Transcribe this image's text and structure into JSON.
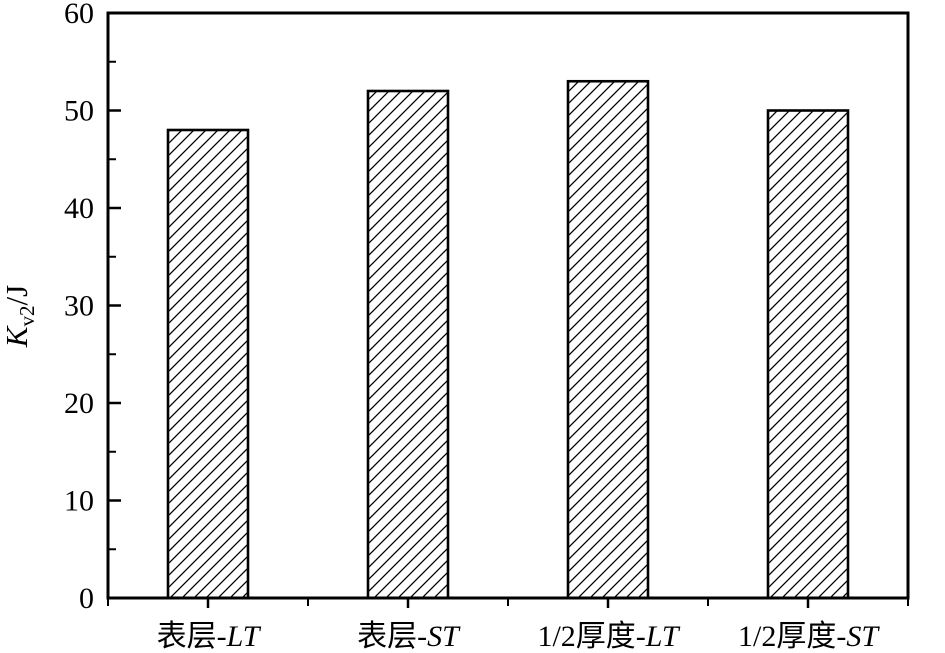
{
  "chart_data": {
    "type": "bar",
    "title": "",
    "categories": [
      {
        "prefix": "表层-",
        "suffix": "LT",
        "label": "表层-LT"
      },
      {
        "prefix": "表层-",
        "suffix": "ST",
        "label": "表层-ST"
      },
      {
        "prefix": "1/2厚度-",
        "suffix": "LT",
        "label": "1/2厚度-LT"
      },
      {
        "prefix": "1/2厚度-",
        "suffix": "ST",
        "label": "1/2厚度-ST"
      }
    ],
    "values": [
      48,
      52,
      53,
      50
    ],
    "xlabel": "",
    "ylabel": "Kv2/J",
    "ylabel_parts": {
      "main": "K",
      "sub": "v2",
      "suffix": "/J"
    },
    "ylim": [
      0,
      60
    ],
    "yticks": [
      0,
      10,
      20,
      30,
      40,
      50,
      60
    ],
    "minor_yticks": [
      5,
      15,
      25,
      35,
      45,
      55
    ],
    "grid": false,
    "legend": "none",
    "bar_style": {
      "fill": "#ffffff",
      "hatch": "forward-diagonal",
      "hatch_color": "#000000",
      "border_color": "#000000"
    },
    "colors": {
      "axis": "#000000",
      "text": "#000000",
      "background": "#ffffff"
    }
  }
}
